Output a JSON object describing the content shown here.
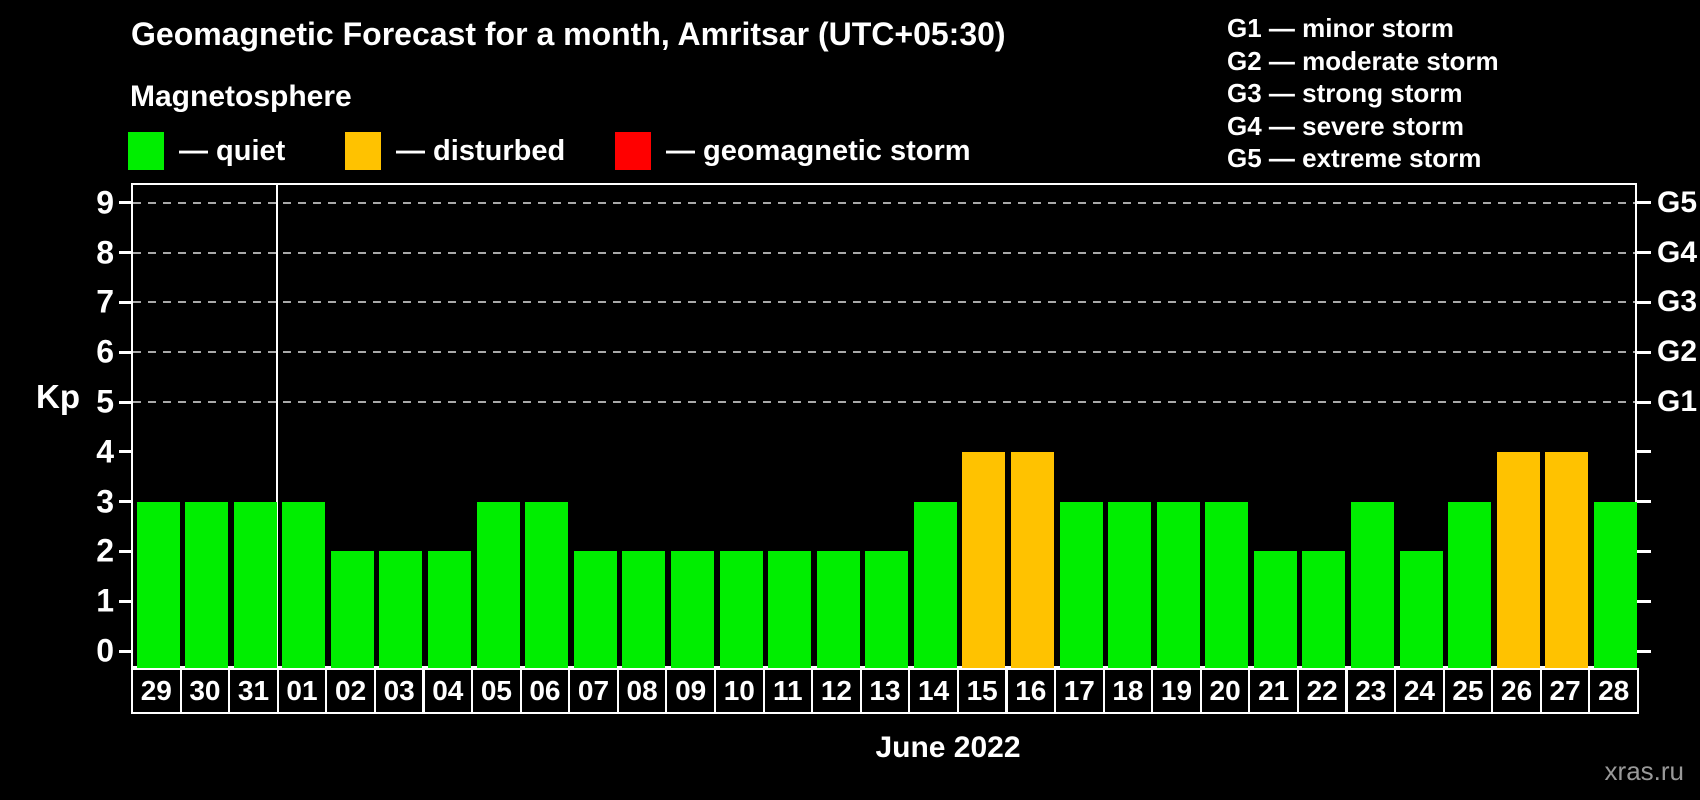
{
  "header": {
    "title": "Geomagnetic Forecast for a month, Amritsar (UTC+05:30)",
    "subtitle": "Magnetosphere",
    "legend": [
      {
        "label": "— quiet",
        "status": "quiet",
        "color": "#00EE00"
      },
      {
        "label": "— disturbed",
        "status": "disturbed",
        "color": "#FFC200"
      },
      {
        "label": "— geomagnetic storm",
        "status": "storm",
        "color": "#FF0000"
      }
    ],
    "g_scale_legend": [
      "G1 — minor storm",
      "G2 — moderate storm",
      "G3 — strong storm",
      "G4 — severe storm",
      "G5 — extreme storm"
    ]
  },
  "chart_data": {
    "type": "bar",
    "title": "Geomagnetic Forecast for a month, Amritsar (UTC+05:30)",
    "ylabel": "Kp",
    "xlabel": "June 2022",
    "ylim": [
      0,
      9.4
    ],
    "grid": "dashed horizontal at Kp 5-9",
    "yticks": [
      0,
      1,
      2,
      3,
      4,
      5,
      6,
      7,
      8,
      9
    ],
    "gridlines_at": [
      5,
      6,
      7,
      8,
      9
    ],
    "right_axis_labels": [
      {
        "kp": 5,
        "label": "G1"
      },
      {
        "kp": 6,
        "label": "G2"
      },
      {
        "kp": 7,
        "label": "G3"
      },
      {
        "kp": 8,
        "label": "G4"
      },
      {
        "kp": 9,
        "label": "G5"
      }
    ],
    "categories": [
      "29",
      "30",
      "31",
      "01",
      "02",
      "03",
      "04",
      "05",
      "06",
      "07",
      "08",
      "09",
      "10",
      "11",
      "12",
      "13",
      "14",
      "15",
      "16",
      "17",
      "18",
      "19",
      "20",
      "21",
      "22",
      "23",
      "24",
      "25",
      "26",
      "27",
      "28"
    ],
    "values": [
      3,
      3,
      3,
      3,
      2,
      2,
      2,
      3,
      3,
      2,
      2,
      2,
      2,
      2,
      2,
      2,
      3,
      4,
      4,
      3,
      3,
      3,
      3,
      2,
      2,
      3,
      2,
      3,
      4,
      4,
      3
    ],
    "thresholds": {
      "disturbed_min": 4,
      "storm_min": 5
    },
    "month_separator_before_index": 3
  },
  "colors": {
    "quiet": "#00EE00",
    "disturbed": "#FFC200",
    "storm": "#FF0000",
    "axis": "#FFFFFF",
    "grid": "#A9A9A9",
    "background": "#000000",
    "watermark_text": "#999999"
  },
  "watermark": "xras.ru"
}
